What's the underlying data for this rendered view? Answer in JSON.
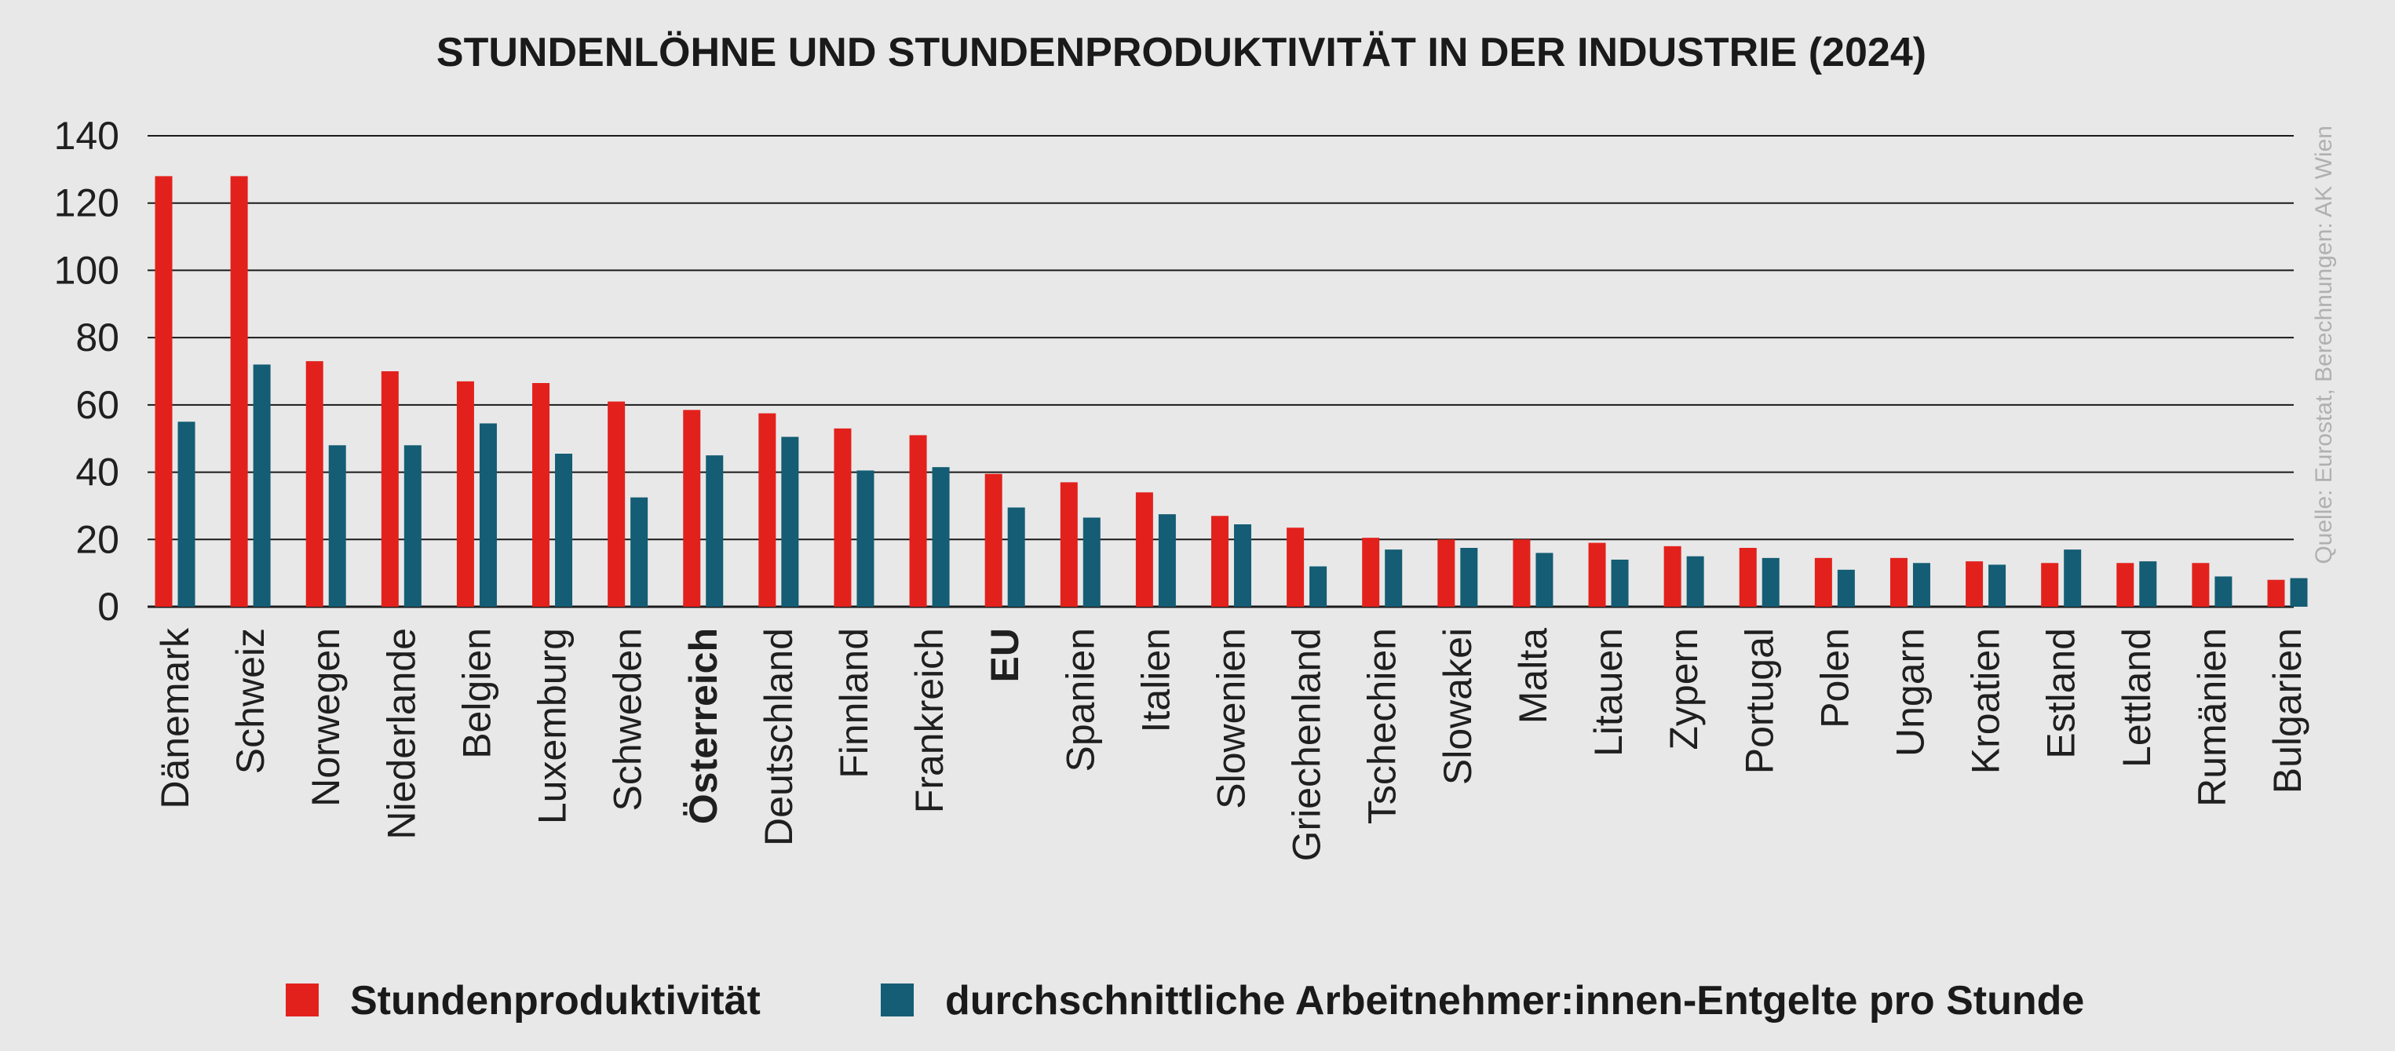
{
  "chart_data": {
    "type": "bar",
    "title": "STUNDENLÖHNE UND STUNDENPRODUKTIVITÄT IN DER INDUSTRIE (2024)",
    "xlabel": "",
    "ylabel": "",
    "ylim": [
      0,
      140
    ],
    "yticks": [
      0,
      20,
      40,
      60,
      80,
      100,
      120,
      140
    ],
    "grid": true,
    "legend_position": "bottom",
    "source": "Quelle: Eurostat, Berechnungen: AK Wien",
    "categories": [
      "Dänemark",
      "Schweiz",
      "Norwegen",
      "Niederlande",
      "Belgien",
      "Luxemburg",
      "Schweden",
      "Österreich",
      "Deutschland",
      "Finnland",
      "Frankreich",
      "EU",
      "Spanien",
      "Italien",
      "Slowenien",
      "Griechenland",
      "Tschechien",
      "Slowakei",
      "Malta",
      "Litauen",
      "Zypern",
      "Portugal",
      "Polen",
      "Ungarn",
      "Kroatien",
      "Estland",
      "Lettland",
      "Rumänien",
      "Bulgarien"
    ],
    "bold_categories": [
      "Österreich",
      "EU"
    ],
    "series": [
      {
        "name": "Stundenproduktivität",
        "color": "#e3211c",
        "values": [
          128,
          128,
          73,
          70,
          67,
          66.5,
          61,
          58.5,
          57.5,
          53,
          51,
          39.5,
          37,
          34,
          27,
          23.5,
          20.5,
          20,
          20,
          19,
          18,
          17.5,
          14.5,
          14.5,
          13.5,
          13,
          13,
          13,
          8
        ]
      },
      {
        "name": "durchschnittliche Arbeitnehmer:innen-Entgelte pro Stunde",
        "color": "#145d74",
        "values": [
          55,
          72,
          48,
          48,
          54.5,
          45.5,
          32.5,
          45,
          50.5,
          40.5,
          41.5,
          29.5,
          26.5,
          27.5,
          24.5,
          12,
          17,
          17.5,
          16,
          14,
          15,
          14.5,
          11,
          13,
          12.5,
          17,
          13.5,
          9,
          8.5
        ]
      }
    ]
  }
}
